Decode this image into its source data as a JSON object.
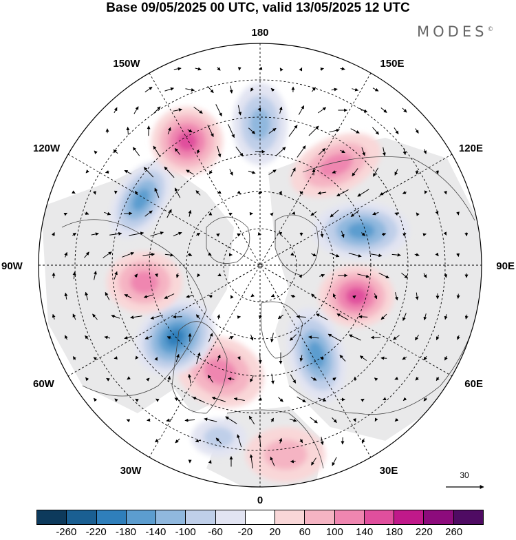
{
  "title": "Base 09/05/2025 00 UTC, valid 13/05/2025 12 UTC",
  "brand": "MODES",
  "brand_mark": "©",
  "longitude_labels": {
    "lon_180": "180",
    "lon_150W": "150W",
    "lon_150E": "150E",
    "lon_120W": "120W",
    "lon_120E": "120E",
    "lon_90W": "90W",
    "lon_90E": "90E",
    "lon_60W": "60W",
    "lon_60E": "60E",
    "lon_30W": "30W",
    "lon_30E": "30E",
    "lon_0": "0"
  },
  "reference_vector": "30",
  "colorbar": {
    "ticks": [
      "-260",
      "-220",
      "-180",
      "-140",
      "-100",
      "-60",
      "-20",
      "20",
      "60",
      "100",
      "140",
      "180",
      "220",
      "260"
    ],
    "colors": [
      "#0d3a5c",
      "#1a5f92",
      "#2f7fbb",
      "#5c9dcf",
      "#90b8de",
      "#bfcfe9",
      "#e2e4f2",
      "#ffffff",
      "#f9d7d8",
      "#f5b4c3",
      "#ef86b0",
      "#e04f9d",
      "#c0198a",
      "#8d0b7c",
      "#4f0b63"
    ]
  },
  "anomaly_centers": [
    {
      "name": "low-150W",
      "sign": "negative",
      "level": 3
    },
    {
      "name": "high-160W",
      "sign": "positive",
      "level": 3
    },
    {
      "name": "low-175E",
      "sign": "negative",
      "level": 2
    },
    {
      "name": "high-135E",
      "sign": "positive",
      "level": 2
    },
    {
      "name": "low-100E",
      "sign": "negative",
      "level": 3
    },
    {
      "name": "high-70E",
      "sign": "positive",
      "level": 3
    },
    {
      "name": "low-45E",
      "sign": "negative",
      "level": 3
    },
    {
      "name": "high-15W",
      "sign": "positive",
      "level": 2
    },
    {
      "name": "low-55W",
      "sign": "negative",
      "level": 4
    },
    {
      "name": "high-95W",
      "sign": "positive",
      "level": 2
    },
    {
      "name": "low-20E",
      "sign": "negative",
      "level": 1
    },
    {
      "name": "high-5E",
      "sign": "positive",
      "level": 1
    }
  ]
}
